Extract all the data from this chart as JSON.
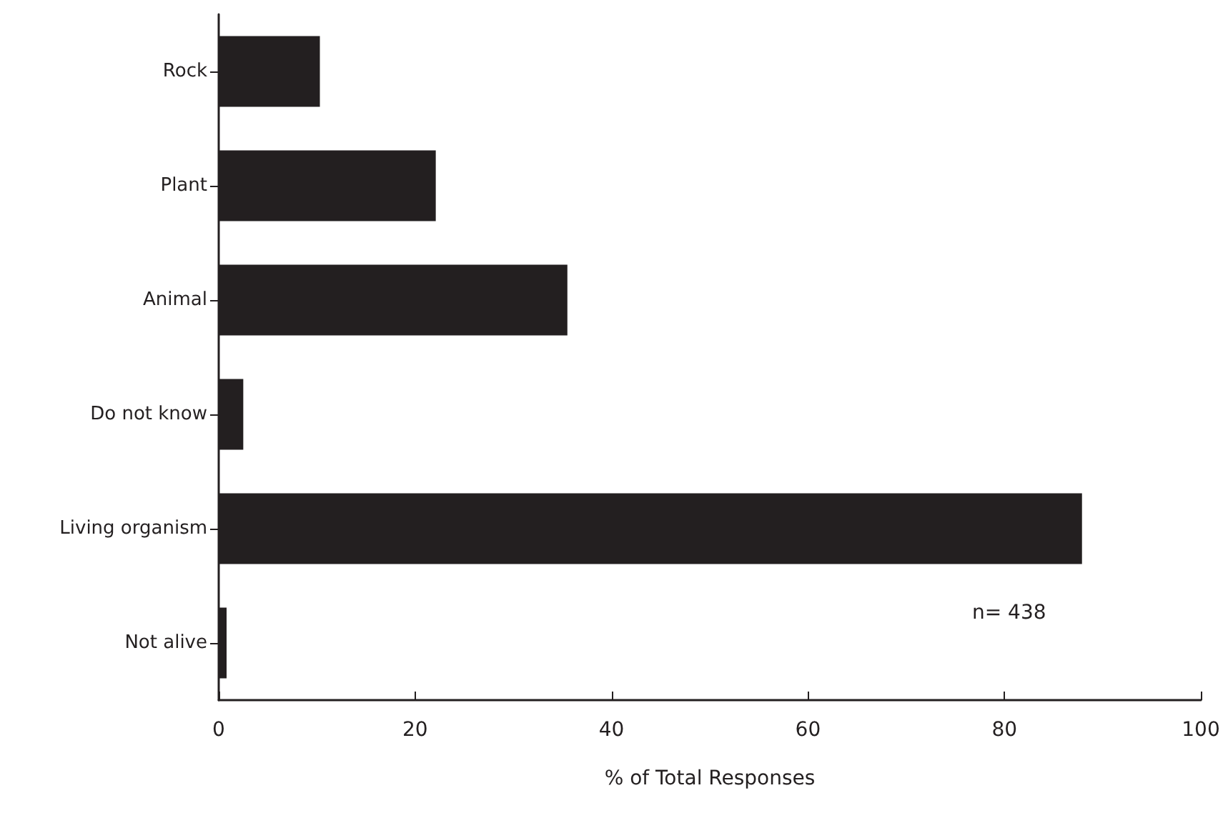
{
  "chart_data": {
    "type": "bar",
    "orientation": "horizontal",
    "xlabel": "% of Total Responses",
    "categories": [
      "Rock",
      "Plant",
      "Animal",
      "Do not know",
      "Living organism",
      "Not alive"
    ],
    "values": [
      10.3,
      22.1,
      35.5,
      2.5,
      87.9,
      0.8
    ],
    "color": "#231f20",
    "xlim": [
      0,
      100
    ],
    "xticks": [
      0,
      20,
      40,
      60,
      80,
      100
    ],
    "grid": false,
    "annotations": [
      "n= 438"
    ]
  }
}
